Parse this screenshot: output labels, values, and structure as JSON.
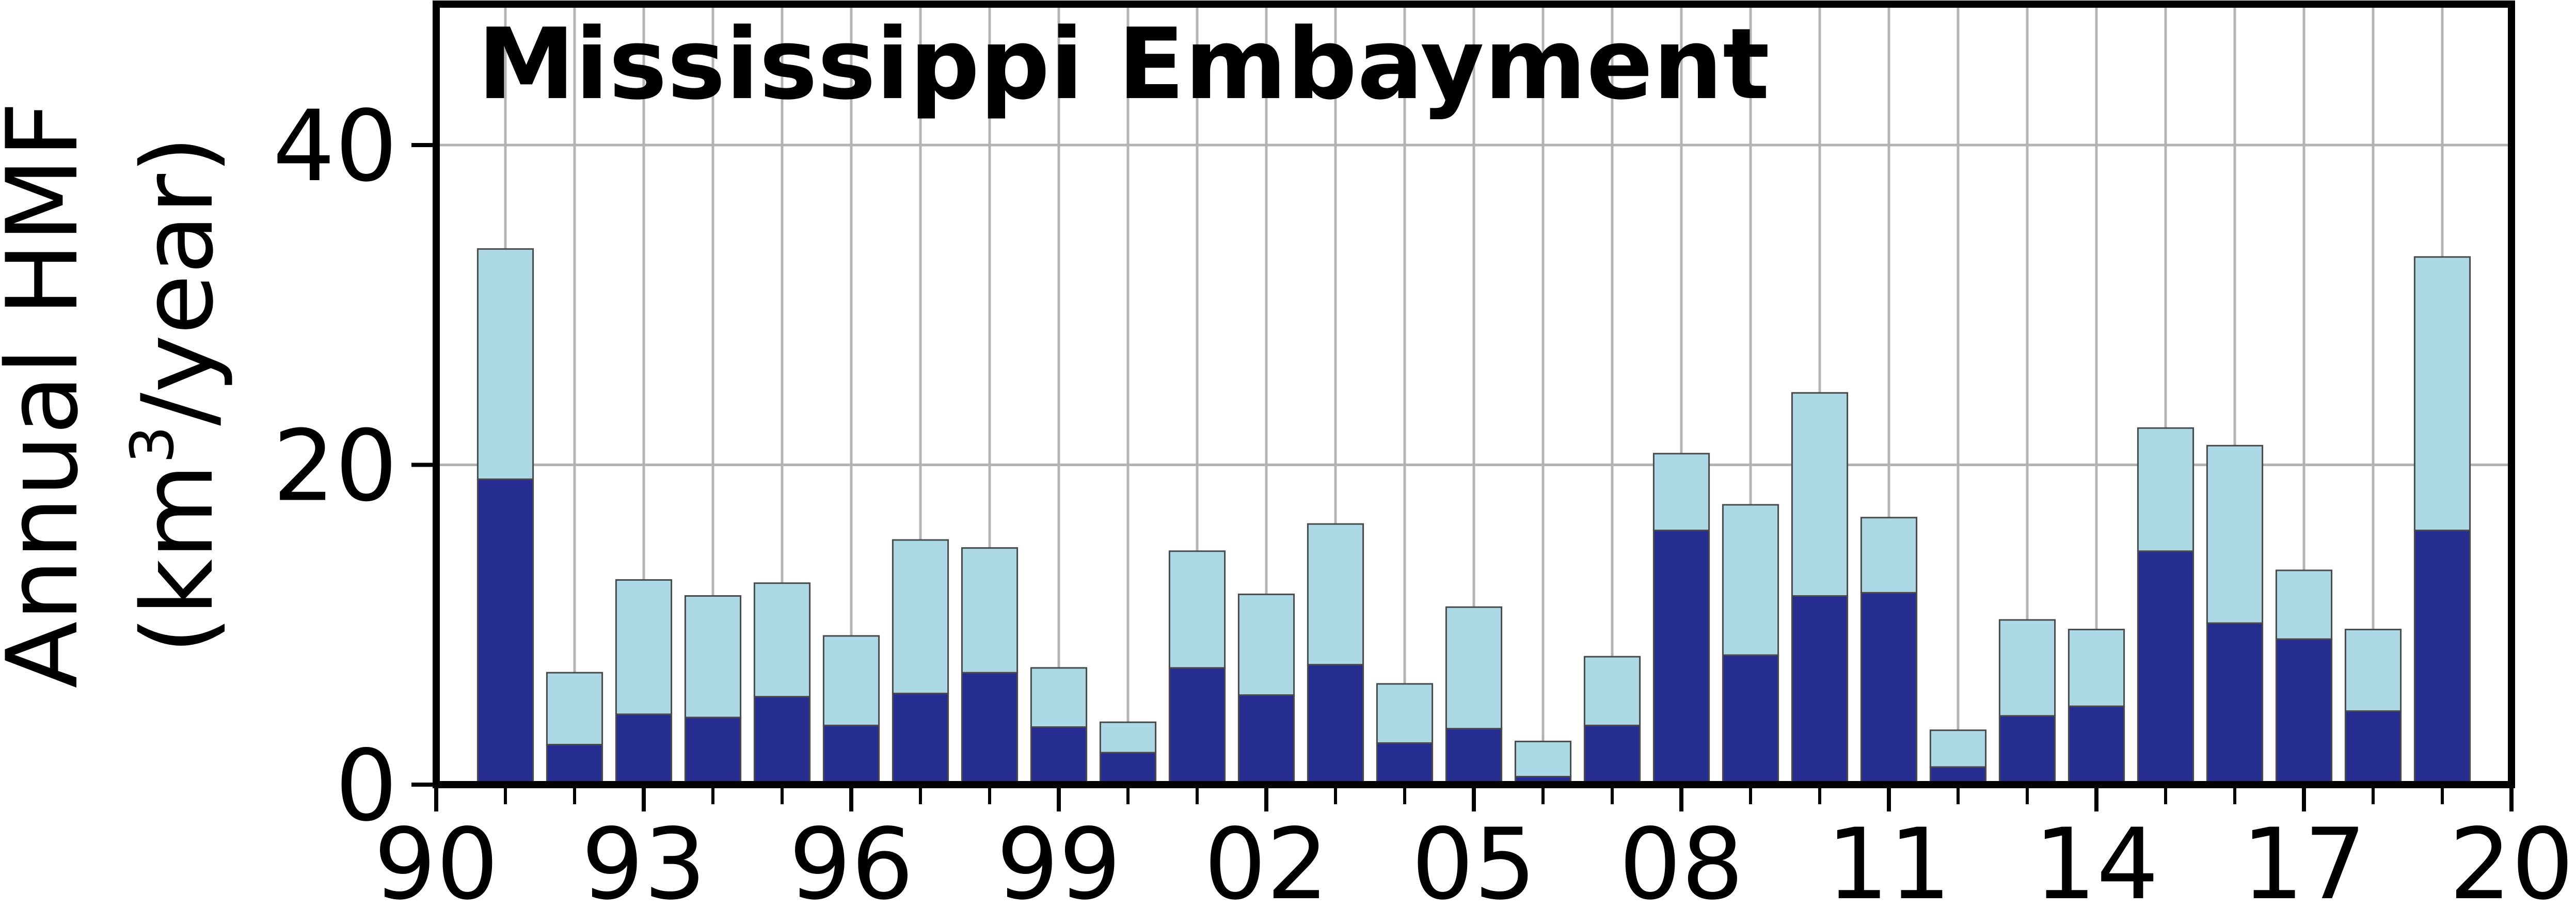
{
  "chart_data": {
    "type": "bar",
    "title": "Mississippi Embayment",
    "ylabel_line1": "Annual HMF",
    "ylabel_line2_pre": "(km",
    "ylabel_sup": "3",
    "ylabel_line2_post": "/year)",
    "xlim": [
      1990,
      2020
    ],
    "ylim": [
      0,
      40
    ],
    "yticks": [
      0,
      20,
      40
    ],
    "xticks": [
      "90",
      "93",
      "96",
      "99",
      "02",
      "05",
      "08",
      "11",
      "14",
      "17",
      "20"
    ],
    "grid": true,
    "x": [
      1991,
      1992,
      1993,
      1994,
      1995,
      1996,
      1997,
      1998,
      1999,
      2000,
      2001,
      2002,
      2003,
      2004,
      2005,
      2006,
      2007,
      2008,
      2009,
      2010,
      2011,
      2012,
      2013,
      2014,
      2015,
      2016,
      2017,
      2018,
      2019
    ],
    "series": [
      {
        "color": "#262d91",
        "values": [
          19.1,
          2.5,
          4.4,
          4.2,
          5.5,
          3.7,
          5.7,
          7.0,
          3.6,
          2.0,
          7.3,
          5.6,
          7.5,
          2.6,
          3.5,
          0.5,
          3.7,
          15.9,
          8.1,
          11.8,
          12.0,
          1.1,
          4.3,
          4.9,
          14.6,
          10.1,
          9.1,
          4.6,
          15.9
        ]
      },
      {
        "color": "#add8e6",
        "values": [
          14.4,
          4.5,
          8.4,
          7.6,
          7.1,
          5.6,
          9.6,
          7.8,
          3.7,
          1.9,
          7.3,
          6.3,
          8.8,
          3.7,
          7.6,
          2.2,
          4.3,
          4.8,
          9.4,
          12.7,
          4.7,
          2.3,
          6.0,
          4.8,
          7.7,
          11.1,
          4.3,
          5.1,
          17.1
        ]
      }
    ]
  }
}
